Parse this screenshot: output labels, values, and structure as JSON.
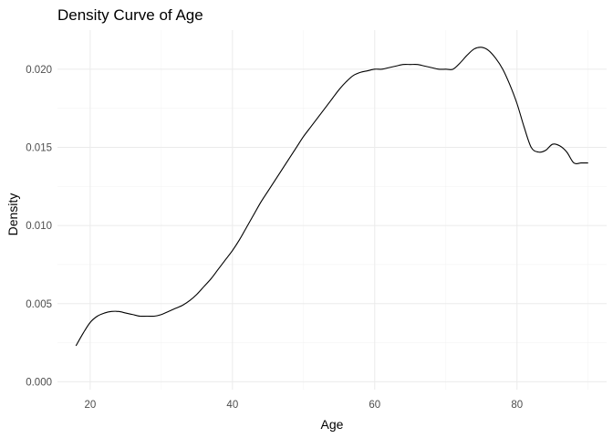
{
  "chart_data": {
    "type": "line",
    "title": "Density Curve of Age",
    "xlabel": "Age",
    "ylabel": "Density",
    "xlim": [
      15.4,
      92.6
    ],
    "ylim": [
      -0.0005,
      0.0225
    ],
    "x_ticks": [
      20,
      40,
      60,
      80
    ],
    "y_ticks": [
      0.0,
      0.005,
      0.01,
      0.015,
      0.02
    ],
    "x_tick_labels": [
      "20",
      "40",
      "60",
      "80"
    ],
    "y_tick_labels": [
      "0.000",
      "0.005",
      "0.010",
      "0.015",
      "0.020"
    ],
    "grid": true,
    "legend": "none",
    "x": [
      18,
      19,
      20,
      21,
      22,
      23,
      24,
      25,
      26,
      27,
      28,
      29,
      30,
      31,
      32,
      33,
      34,
      35,
      36,
      37,
      38,
      39,
      40,
      41,
      42,
      43,
      44,
      45,
      46,
      47,
      48,
      49,
      50,
      51,
      52,
      53,
      54,
      55,
      56,
      57,
      58,
      59,
      60,
      61,
      62,
      63,
      64,
      65,
      66,
      67,
      68,
      69,
      70,
      71,
      72,
      73,
      74,
      75,
      76,
      77,
      78,
      79,
      80,
      81,
      82,
      83,
      84,
      85,
      86,
      87,
      88,
      89,
      90
    ],
    "y": [
      0.0023,
      0.0031,
      0.0038,
      0.0042,
      0.0044,
      0.0045,
      0.0045,
      0.0044,
      0.0043,
      0.0042,
      0.0042,
      0.0042,
      0.0043,
      0.0045,
      0.0047,
      0.0049,
      0.0052,
      0.0056,
      0.0061,
      0.0066,
      0.0072,
      0.0078,
      0.0084,
      0.0091,
      0.0099,
      0.0107,
      0.0115,
      0.0122,
      0.0129,
      0.0136,
      0.0143,
      0.015,
      0.0157,
      0.0163,
      0.0169,
      0.0175,
      0.0181,
      0.0187,
      0.0192,
      0.0196,
      0.0198,
      0.0199,
      0.02,
      0.02,
      0.0201,
      0.0202,
      0.0203,
      0.0203,
      0.0203,
      0.0202,
      0.0201,
      0.02,
      0.02,
      0.02,
      0.0204,
      0.0209,
      0.0213,
      0.0214,
      0.0212,
      0.0207,
      0.02,
      0.019,
      0.0178,
      0.0163,
      0.015,
      0.0147,
      0.0148,
      0.0152,
      0.0151,
      0.0147,
      0.014,
      0.014,
      0.014
    ]
  }
}
